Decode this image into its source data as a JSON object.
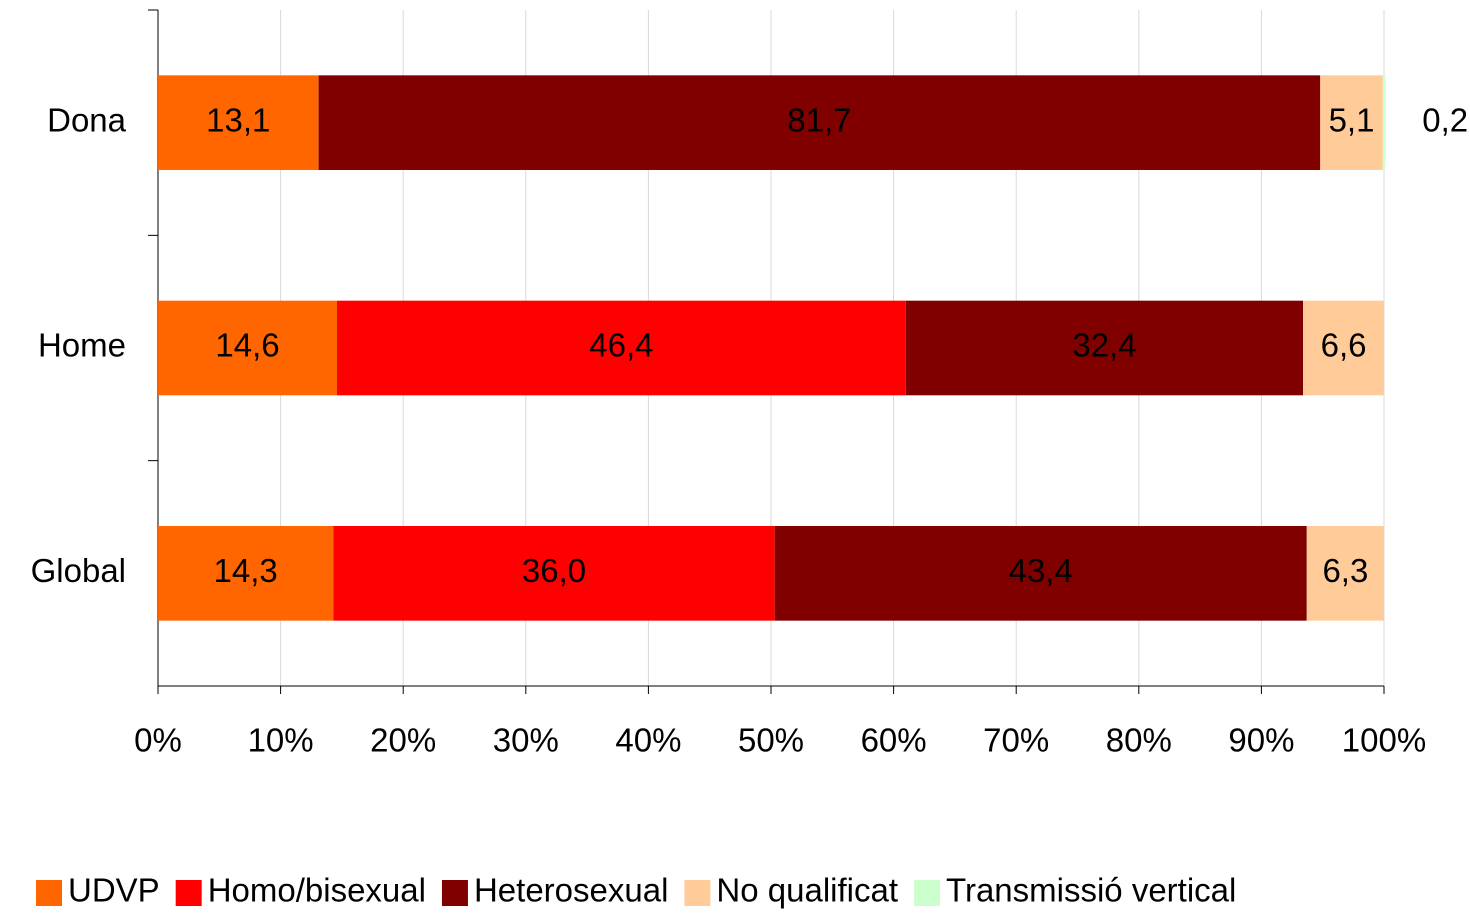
{
  "chart_data": {
    "type": "stacked_bar_horizontal",
    "categories": [
      "Dona",
      "Home",
      "Global"
    ],
    "series": [
      {
        "name": "UDVP",
        "color": "#ff6600",
        "values": [
          13.1,
          14.6,
          14.3
        ],
        "value_labels": [
          "13,1",
          "14,6",
          "14,3"
        ]
      },
      {
        "name": "Homo/bisexual",
        "color": "#ff0000",
        "values": [
          null,
          46.4,
          36.0
        ],
        "value_labels": [
          null,
          "46,4",
          "36,0"
        ]
      },
      {
        "name": "Heterosexual",
        "color": "#800000",
        "values": [
          81.7,
          32.4,
          43.4
        ],
        "value_labels": [
          "81,7",
          "32,4",
          "43,4"
        ]
      },
      {
        "name": "No qualificat",
        "color": "#ffcc99",
        "values": [
          5.1,
          6.6,
          6.3
        ],
        "value_labels": [
          "5,1",
          "6,6",
          "6,3"
        ]
      },
      {
        "name": "Transmissió vertical",
        "color": "#ccffcc",
        "values": [
          0.2,
          null,
          null
        ],
        "value_labels": [
          "0,2",
          null,
          null
        ]
      }
    ],
    "xlim": [
      0,
      100
    ],
    "xticks": [
      {
        "value": 0,
        "label": "0%"
      },
      {
        "value": 10,
        "label": "10%"
      },
      {
        "value": 20,
        "label": "20%"
      },
      {
        "value": 30,
        "label": "30%"
      },
      {
        "value": 40,
        "label": "40%"
      },
      {
        "value": 50,
        "label": "50%"
      },
      {
        "value": 60,
        "label": "60%"
      },
      {
        "value": 70,
        "label": "70%"
      },
      {
        "value": 80,
        "label": "80%"
      },
      {
        "value": 90,
        "label": "90%"
      },
      {
        "value": 100,
        "label": "100%"
      }
    ],
    "grid": true,
    "legend": "bottom"
  }
}
